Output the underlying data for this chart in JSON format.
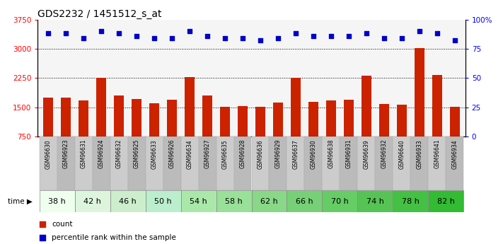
{
  "title": "GDS2232 / 1451512_s_at",
  "samples": [
    "GSM96630",
    "GSM96923",
    "GSM96631",
    "GSM96924",
    "GSM96632",
    "GSM96925",
    "GSM96633",
    "GSM96926",
    "GSM96634",
    "GSM96927",
    "GSM96635",
    "GSM96928",
    "GSM96636",
    "GSM96929",
    "GSM96637",
    "GSM96930",
    "GSM96638",
    "GSM96931",
    "GSM96639",
    "GSM96932",
    "GSM96640",
    "GSM96933",
    "GSM96641",
    "GSM96934"
  ],
  "bar_values": [
    1750,
    1750,
    1680,
    2250,
    1800,
    1720,
    1600,
    1700,
    2270,
    1800,
    1510,
    1530,
    1510,
    1620,
    2250,
    1650,
    1680,
    1700,
    2320,
    1590,
    1560,
    3020,
    2330,
    1510
  ],
  "percentile_values": [
    88,
    88,
    84,
    90,
    88,
    86,
    84,
    84,
    90,
    86,
    84,
    84,
    82,
    84,
    88,
    86,
    86,
    86,
    88,
    84,
    84,
    90,
    88,
    82
  ],
  "time_groups": [
    {
      "label": "38 h",
      "start": 0,
      "end": 2
    },
    {
      "label": "42 h",
      "start": 2,
      "end": 4
    },
    {
      "label": "46 h",
      "start": 4,
      "end": 6
    },
    {
      "label": "50 h",
      "start": 6,
      "end": 8
    },
    {
      "label": "54 h",
      "start": 8,
      "end": 10
    },
    {
      "label": "58 h",
      "start": 10,
      "end": 12
    },
    {
      "label": "62 h",
      "start": 12,
      "end": 14
    },
    {
      "label": "66 h",
      "start": 14,
      "end": 16
    },
    {
      "label": "70 h",
      "start": 16,
      "end": 18
    },
    {
      "label": "74 h",
      "start": 18,
      "end": 20
    },
    {
      "label": "78 h",
      "start": 20,
      "end": 22
    },
    {
      "label": "82 h",
      "start": 22,
      "end": 24
    }
  ],
  "time_colors": [
    "#eeffee",
    "#ddf5dd",
    "#cceecc",
    "#bbeecc",
    "#aae8aa",
    "#99e099",
    "#88d888",
    "#77d077",
    "#66cc66",
    "#55c455",
    "#44c044",
    "#33bb33"
  ],
  "bar_color": "#cc2200",
  "dot_color": "#0000cc",
  "ylim_left": [
    750,
    3750
  ],
  "ylim_right": [
    0,
    100
  ],
  "yticks_left": [
    750,
    1500,
    2250,
    3000,
    3750
  ],
  "yticks_right": [
    0,
    25,
    50,
    75,
    100
  ],
  "ylabel_right_labels": [
    "0",
    "25",
    "50",
    "75",
    "100%"
  ],
  "sample_bg_color": "#cccccc",
  "plot_bg_color": "#f5f5f5",
  "background_color": "#ffffff",
  "title_fontsize": 10,
  "bar_width": 0.55
}
